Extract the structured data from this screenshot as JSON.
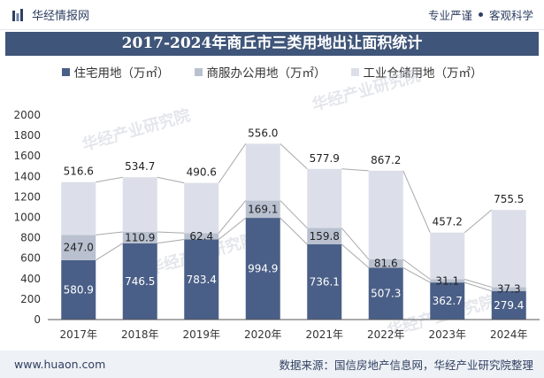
{
  "header": {
    "brand_name": "华经情报网",
    "slogan_left": "专业严谨",
    "slogan_right": "客观科学"
  },
  "footer": {
    "website": "www.huaon.com",
    "source": "数据来源：国信房地产信息网，华经产业研究院整理"
  },
  "watermark": "华经产业研究院",
  "colors": {
    "residential": "#4a5f87",
    "commercial": "#b9c1d0",
    "industrial": "#dcdfe9",
    "title_bg": "#3f5579",
    "total_line": "#a9a9a9"
  },
  "chart_data": {
    "type": "bar",
    "stacked": true,
    "title": "2017-2024年商丘市三类用地出让面积统计",
    "categories": [
      "2017年",
      "2018年",
      "2019年",
      "2020年",
      "2021年",
      "2022年",
      "2023年",
      "2024年"
    ],
    "series": [
      {
        "name": "住宅用地（万㎡）",
        "values": [
          580.9,
          746.5,
          783.4,
          994.9,
          736.1,
          507.3,
          362.7,
          279.4
        ]
      },
      {
        "name": "商服办公用地（万㎡）",
        "values": [
          247.0,
          110.9,
          62.4,
          169.1,
          159.8,
          81.6,
          31.1,
          37.3
        ]
      },
      {
        "name": "工业仓储用地（万㎡）",
        "values": [
          516.6,
          534.7,
          490.6,
          556.0,
          577.9,
          867.2,
          457.2,
          755.5
        ]
      }
    ],
    "ylim": [
      0,
      2000
    ],
    "yticks": [
      0,
      200,
      400,
      600,
      800,
      1000,
      1200,
      1400,
      1600,
      1800,
      2000
    ],
    "xlabel": "",
    "ylabel": "",
    "grid": false,
    "legend": "top-center",
    "series_lines": true
  }
}
